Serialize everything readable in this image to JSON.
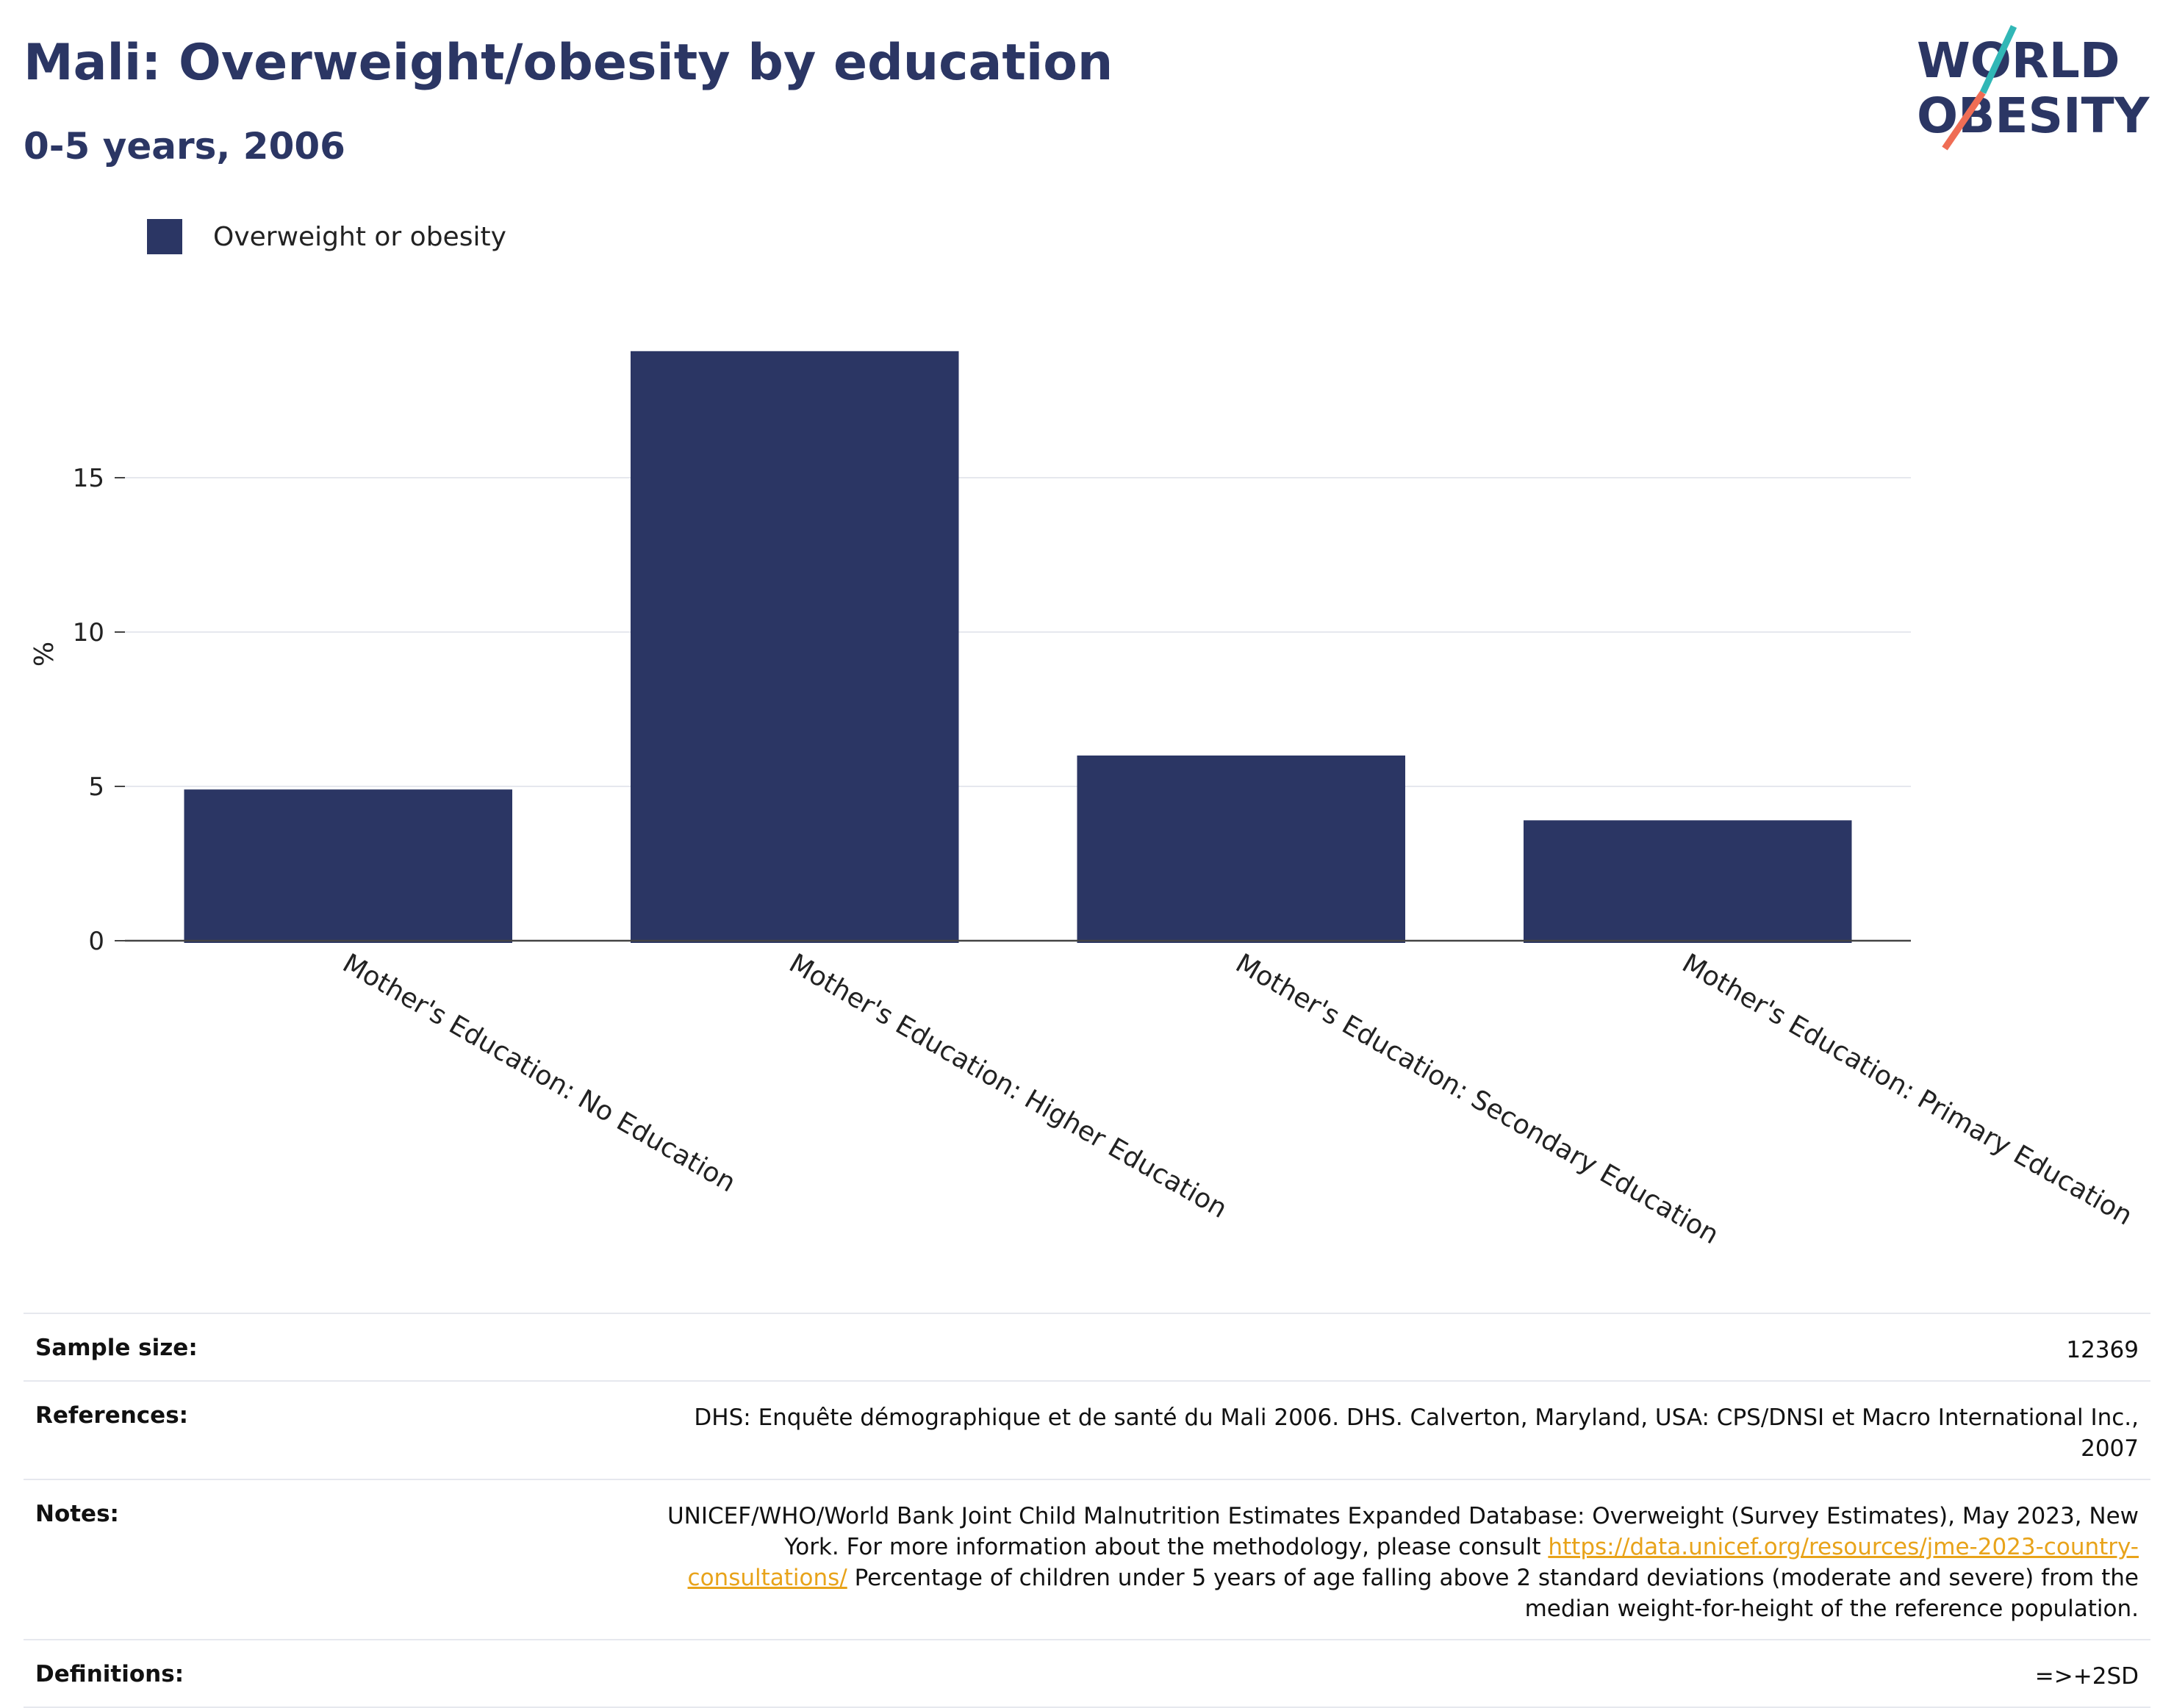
{
  "title": "Mali: Overweight/obesity by education",
  "subtitle": "0-5 years, 2006",
  "logo": {
    "line1": "WORLD",
    "line2": "OBESITY",
    "colors": {
      "navy": "#2b3664",
      "teal": "#31b7b6",
      "coral": "#ef6d55"
    }
  },
  "legend": {
    "label": "Overweight or obesity",
    "color": "#2b3664"
  },
  "chart_data": {
    "type": "bar",
    "categories": [
      "Mother's Education: No Education",
      "Mother's Education: Higher Education",
      "Mother's Education: Secondary Education",
      "Mother's Education: Primary Education"
    ],
    "series": [
      {
        "name": "Overweight or obesity",
        "values": [
          4.9,
          19.1,
          6.0,
          3.9
        ],
        "color": "#2b3664"
      }
    ],
    "ylabel": "%",
    "xlabel": "",
    "ylim": [
      0,
      20
    ],
    "yticks": [
      0,
      5,
      10,
      15
    ],
    "grid": true,
    "legend_position": "top-left"
  },
  "footer": {
    "sample_size": {
      "label": "Sample size:",
      "value": "12369"
    },
    "references": {
      "label": "References:",
      "value": "DHS: Enquête démographique et de santé du Mali 2006. DHS. Calverton, Maryland, USA: CPS/DNSI et Macro International Inc., 2007"
    },
    "notes": {
      "label": "Notes:",
      "part1": "UNICEF/WHO/World Bank Joint Child Malnutrition Estimates Expanded Database: Overweight (Survey Estimates), May 2023, New York. For more information about the methodology, please consult ",
      "link": "https://data.unicef.org/resources/jme-2023-country-consultations/",
      "part2": " Percentage of children under 5 years of age falling above 2 standard deviations (moderate and severe) from the median weight-for-height of the reference population."
    },
    "definitions": {
      "label": "Definitions:",
      "value": "=>+2SD"
    }
  }
}
